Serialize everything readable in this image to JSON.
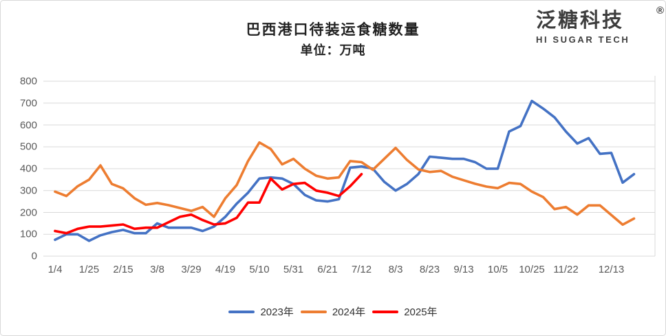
{
  "header": {
    "title": "巴西港口待装运食糖数量",
    "subtitle": "单位：万吨"
  },
  "logo": {
    "name": "泛糖科技",
    "registered_mark": "®",
    "subtitle": "HI SUGAR TECH"
  },
  "chart_data": {
    "type": "line",
    "title": "巴西港口待装运食糖数量",
    "unit_label": "单位：万吨",
    "xlabel": "",
    "ylabel": "",
    "ylim": [
      0,
      800
    ],
    "yticks": [
      0,
      100,
      200,
      300,
      400,
      500,
      600,
      700,
      800
    ],
    "grid": true,
    "legend_position": "bottom",
    "x_axis": {
      "tick_labels": [
        "1/4",
        "1/25",
        "2/15",
        "3/8",
        "3/29",
        "4/19",
        "5/10",
        "5/31",
        "6/21",
        "7/12",
        "8/3",
        "8/23",
        "9/13",
        "10/5",
        "10/25",
        "11/22",
        "12/13"
      ],
      "tick_indices": [
        0,
        3,
        6,
        9,
        12,
        15,
        18,
        21,
        24,
        27,
        30,
        33,
        36,
        39,
        42,
        45,
        49
      ],
      "total_points": 52,
      "frequency": "weekly"
    },
    "series": [
      {
        "name": "2023年",
        "color": "#4472C4",
        "values": [
          75,
          100,
          100,
          70,
          95,
          110,
          120,
          105,
          105,
          150,
          130,
          130,
          130,
          115,
          135,
          180,
          240,
          290,
          355,
          360,
          355,
          330,
          280,
          255,
          250,
          260,
          405,
          410,
          400,
          340,
          300,
          330,
          375,
          455,
          450,
          445,
          445,
          430,
          400,
          400,
          570,
          595,
          710,
          675,
          635,
          570,
          515,
          540,
          468,
          472,
          336,
          375
        ]
      },
      {
        "name": "2024年",
        "color": "#ED7D31",
        "values": [
          295,
          275,
          320,
          350,
          415,
          330,
          310,
          265,
          235,
          243,
          233,
          220,
          207,
          225,
          180,
          265,
          325,
          435,
          520,
          490,
          420,
          445,
          400,
          368,
          355,
          360,
          435,
          430,
          395,
          445,
          495,
          440,
          397,
          385,
          390,
          363,
          347,
          331,
          318,
          311,
          335,
          330,
          295,
          270,
          215,
          225,
          190,
          232,
          232,
          188,
          144,
          172
        ]
      },
      {
        "name": "2025年",
        "color": "#FF0000",
        "values": [
          115,
          105,
          125,
          135,
          135,
          140,
          145,
          125,
          130,
          130,
          155,
          180,
          190,
          165,
          145,
          150,
          175,
          245,
          245,
          355,
          305,
          330,
          335,
          300,
          290,
          275,
          320,
          375
        ]
      }
    ]
  },
  "colors": {
    "grid": "#D9D9D9",
    "plot_border": "#D9D9D9",
    "axis_text": "#595959",
    "title_text": "#222222",
    "logo_text": "#3D3D3D"
  }
}
